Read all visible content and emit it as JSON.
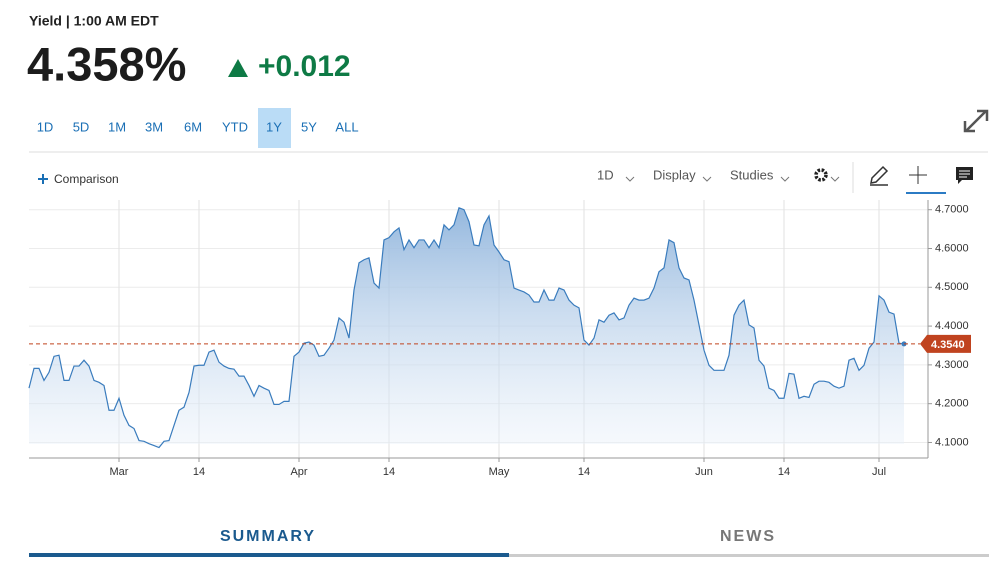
{
  "header": {
    "label": "Yield | 1:00 AM EDT",
    "price": "4.358%",
    "change": "+0.012"
  },
  "ranges": [
    "1D",
    "5D",
    "1M",
    "3M",
    "6M",
    "YTD",
    "1Y",
    "5Y",
    "ALL"
  ],
  "active_range": 6,
  "toolbar": {
    "comparison": "Comparison",
    "interval": "1D",
    "display": "Display",
    "studies": "Studies"
  },
  "tabs": [
    "SUMMARY",
    "NEWS"
  ],
  "active_tab": 0,
  "chart_data": {
    "type": "area",
    "color": "#3a7cbd",
    "categories": [
      null,
      null,
      null,
      null,
      null,
      null,
      null,
      null,
      null,
      null,
      null,
      null,
      null,
      null,
      null,
      null,
      null,
      null,
      "Mar",
      null,
      null,
      null,
      null,
      null,
      null,
      null,
      null,
      null,
      null,
      null,
      null,
      null,
      null,
      null,
      "14",
      null,
      null,
      null,
      null,
      null,
      null,
      null,
      null,
      null,
      null,
      null,
      null,
      null,
      null,
      null,
      null,
      null,
      null,
      null,
      "Apr",
      null,
      null,
      null,
      null,
      null,
      null,
      null,
      null,
      null,
      null,
      null,
      null,
      null,
      null,
      null,
      null,
      null,
      "14",
      null,
      null,
      null,
      null,
      null,
      null,
      null,
      null,
      null,
      null,
      null,
      null,
      null,
      null,
      null,
      null,
      null,
      null,
      null,
      null,
      null,
      "May",
      null,
      null,
      null,
      null,
      null,
      null,
      null,
      null,
      null,
      null,
      null,
      null,
      null,
      null,
      null,
      null,
      "14",
      null,
      null,
      null,
      null,
      null,
      null,
      null,
      null,
      null,
      null,
      null,
      null,
      null,
      null,
      null,
      null,
      null,
      null,
      null,
      null,
      null,
      null,
      null,
      "Jun",
      null,
      null,
      null,
      null,
      null,
      null,
      null,
      null,
      null,
      null,
      null,
      null,
      null,
      null,
      null,
      "14",
      null,
      null,
      null,
      null,
      null,
      null,
      null,
      null,
      null,
      null,
      null,
      null,
      null,
      null,
      null,
      null,
      null,
      null,
      "Jul",
      null,
      null,
      null,
      null,
      null
    ],
    "values": [
      4.24,
      4.291,
      4.291,
      4.26,
      4.281,
      4.322,
      4.325,
      4.26,
      4.26,
      4.297,
      4.297,
      4.312,
      4.297,
      4.26,
      4.255,
      4.247,
      4.183,
      4.183,
      4.214,
      4.17,
      4.144,
      4.136,
      4.105,
      4.103,
      4.097,
      4.092,
      4.087,
      4.103,
      4.105,
      4.144,
      4.183,
      4.191,
      4.229,
      4.297,
      4.299,
      4.299,
      4.333,
      4.338,
      4.307,
      4.297,
      4.291,
      4.289,
      4.271,
      4.271,
      4.247,
      4.219,
      4.247,
      4.24,
      4.234,
      4.198,
      4.198,
      4.206,
      4.206,
      4.322,
      4.333,
      4.356,
      4.359,
      4.351,
      4.322,
      4.325,
      4.343,
      4.364,
      4.421,
      4.41,
      4.369,
      4.493,
      4.563,
      4.571,
      4.576,
      4.511,
      4.498,
      4.622,
      4.628,
      4.643,
      4.653,
      4.597,
      4.622,
      4.602,
      4.622,
      4.622,
      4.602,
      4.622,
      4.602,
      4.661,
      4.648,
      4.661,
      4.705,
      4.7,
      4.669,
      4.609,
      4.607,
      4.661,
      4.684,
      4.609,
      4.591,
      4.571,
      4.566,
      4.498,
      4.493,
      4.488,
      4.48,
      4.462,
      4.462,
      4.493,
      4.467,
      4.467,
      4.498,
      4.493,
      4.467,
      4.454,
      4.447,
      4.364,
      4.351,
      4.369,
      4.416,
      4.41,
      4.428,
      4.434,
      4.416,
      4.421,
      4.454,
      4.472,
      4.467,
      4.467,
      4.472,
      4.498,
      4.54,
      4.55,
      4.622,
      4.615,
      4.55,
      4.524,
      4.519,
      4.467,
      4.403,
      4.338,
      4.299,
      4.286,
      4.286,
      4.286,
      4.325,
      4.428,
      4.454,
      4.467,
      4.403,
      4.395,
      4.312,
      4.297,
      4.24,
      4.234,
      4.214,
      4.214,
      4.278,
      4.276,
      4.214,
      4.219,
      4.216,
      4.25,
      4.258,
      4.258,
      4.255,
      4.245,
      4.24,
      4.245,
      4.312,
      4.317,
      4.286,
      4.299,
      4.343,
      4.359,
      4.478,
      4.467,
      4.436,
      4.431,
      4.356,
      4.354
    ],
    "ylim": [
      4.06,
      4.725
    ],
    "yticks": [
      {
        "value": 4.1,
        "label": "4.1000"
      },
      {
        "value": 4.2,
        "label": "4.2000"
      },
      {
        "value": 4.3,
        "label": "4.3000"
      },
      {
        "value": 4.4,
        "label": "4.4000"
      },
      {
        "value": 4.5,
        "label": "4.5000"
      },
      {
        "value": 4.6,
        "label": "4.6000"
      },
      {
        "value": 4.7,
        "label": "4.7000"
      }
    ],
    "grid": true,
    "reference_line": {
      "value": 4.354,
      "label": "4.3540",
      "color": "#c0431f"
    }
  }
}
